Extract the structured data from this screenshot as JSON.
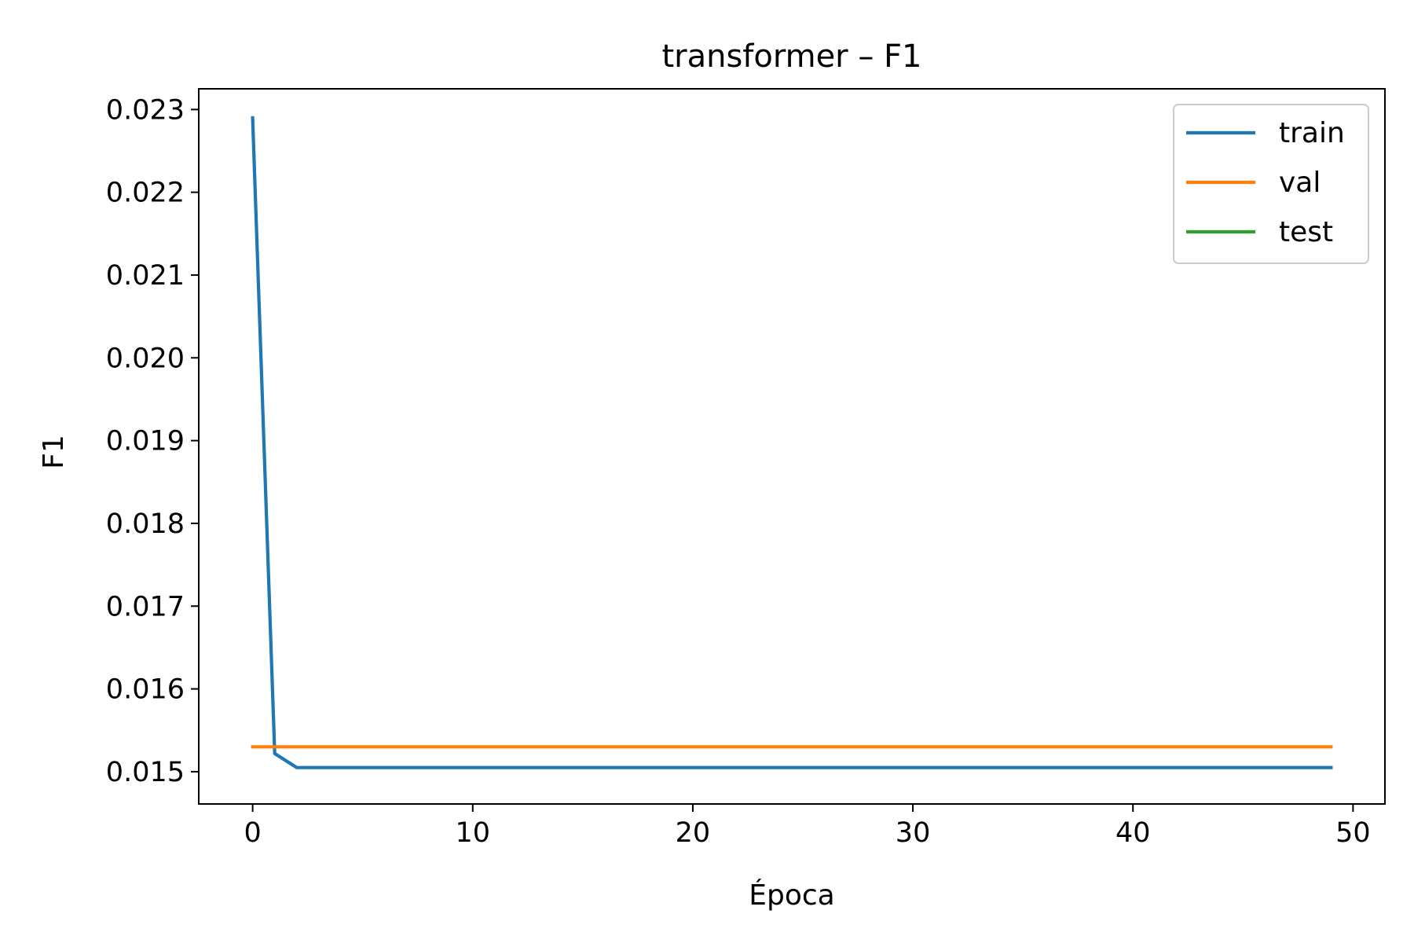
{
  "chart_data": {
    "type": "line",
    "title": "transformer – F1",
    "xlabel": "Época",
    "ylabel": "F1",
    "xlim": [
      -2.45,
      51.45
    ],
    "ylim": [
      0.01461,
      0.02325
    ],
    "xticks": [
      0,
      10,
      20,
      30,
      40,
      50
    ],
    "xtick_labels": [
      "0",
      "10",
      "20",
      "30",
      "40",
      "50"
    ],
    "yticks": [
      0.015,
      0.016,
      0.017,
      0.018,
      0.019,
      0.02,
      0.021,
      0.022,
      0.023
    ],
    "ytick_labels": [
      "0.015",
      "0.016",
      "0.017",
      "0.018",
      "0.019",
      "0.020",
      "0.021",
      "0.022",
      "0.023"
    ],
    "grid": false,
    "legend_position": "top-right",
    "series": [
      {
        "name": "train",
        "color": "#1f77b4",
        "x": [
          0,
          1,
          2,
          3,
          4,
          5,
          10,
          20,
          30,
          40,
          49
        ],
        "y": [
          0.0229,
          0.01522,
          0.01505,
          0.01505,
          0.01505,
          0.01505,
          0.01505,
          0.01505,
          0.01505,
          0.01505,
          0.01505
        ]
      },
      {
        "name": "val",
        "color": "#ff7f0e",
        "x": [
          0,
          49
        ],
        "y": [
          0.0153,
          0.0153
        ]
      },
      {
        "name": "test",
        "color": "#2ca02c",
        "x": [],
        "y": []
      }
    ]
  }
}
